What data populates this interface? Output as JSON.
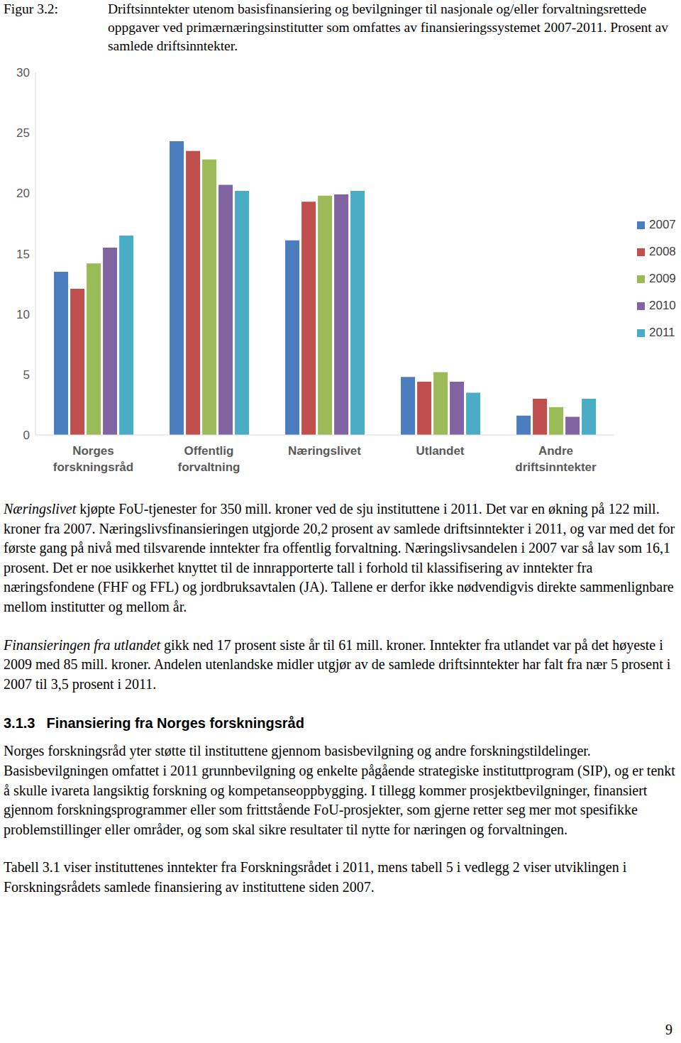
{
  "figure": {
    "label": "Figur 3.2:",
    "caption": "Driftsinntekter utenom basisfinansiering og bevilgninger til nasjonale og/eller forvaltningsrettede oppgaver ved primærnæringsinstitutter som omfattes av finansieringssystemet 2007-2011. Prosent av samlede driftsinntekter."
  },
  "chart_data": {
    "type": "bar",
    "categories": [
      "Norges forskningsråd",
      "Offentlig forvaltning",
      "Næringslivet",
      "Utlandet",
      "Andre driftsinntekter"
    ],
    "series": [
      {
        "name": "2007",
        "color": "#4a7ebf",
        "values": [
          13.5,
          24.3,
          16.1,
          4.8,
          1.6
        ]
      },
      {
        "name": "2008",
        "color": "#c0504d",
        "values": [
          12.1,
          23.5,
          19.3,
          4.4,
          3.0
        ]
      },
      {
        "name": "2009",
        "color": "#9bbb59",
        "values": [
          14.2,
          22.8,
          19.8,
          5.2,
          2.3
        ]
      },
      {
        "name": "2010",
        "color": "#8064a2",
        "values": [
          15.5,
          20.7,
          19.9,
          4.4,
          1.5
        ]
      },
      {
        "name": "2011",
        "color": "#4bacc6",
        "values": [
          16.5,
          20.2,
          20.2,
          3.5,
          3.0
        ]
      }
    ],
    "ylim": [
      0,
      30
    ],
    "yticks": [
      0,
      5,
      10,
      15,
      20,
      25,
      30
    ],
    "grid": false,
    "legend": "right"
  },
  "paragraphs_before_heading": [
    {
      "lead": "Næringslivet",
      "text": " kjøpte FoU-tjenester for 350 mill. kroner ved de sju instituttene i 2011. Det var en økning på 122 mill. kroner fra 2007. Næringslivsfinansieringen utgjorde 20,2 prosent av samlede driftsinntekter i 2011, og var med det for første gang på nivå med tilsvarende inntekter fra offentlig forvaltning. Næringslivsandelen i 2007 var så lav som 16,1 prosent. Det er noe usikkerhet knyttet til de innrapporterte tall i forhold til klassifisering av inntekter fra næringsfondene (FHF og FFL) og jordbruksavtalen (JA). Tallene er derfor ikke nødvendigvis direkte sammenlignbare mellom institutter og mellom år."
    },
    {
      "lead": "Finansieringen fra utlandet",
      "text": " gikk ned 17 prosent siste år til 61 mill. kroner. Inntekter fra utlandet var på det høyeste i 2009 med 85 mill. kroner. Andelen utenlandske midler utgjør av de samlede driftsinntekter har falt fra nær 5 prosent i 2007 til 3,5 prosent i 2011."
    }
  ],
  "heading": {
    "number": "3.1.3",
    "title": "Finansiering fra Norges forskningsråd"
  },
  "paragraphs_after_heading": [
    "Norges forskningsråd yter støtte til instituttene gjennom basisbevilgning og andre forskningstildelinger. Basisbevilgningen omfattet i 2011 grunnbevilgning og enkelte pågående strategiske instituttprogram (SIP), og er tenkt å skulle ivareta langsiktig forskning og kompetanseoppbygging. I tillegg kommer prosjektbevilgninger, finansiert gjennom forskningsprogrammer eller som frittstående FoU-prosjekter, som gjerne retter seg mer mot spesifikke problemstillinger eller områder, og som skal sikre resultater til nytte for næringen og forvaltningen.",
    "Tabell 3.1 viser instituttenes inntekter fra Forskningsrådet i 2011, mens tabell 5 i vedlegg 2 viser utviklingen i Forskningsrådets samlede finansiering av instituttene siden 2007."
  ],
  "page_number": "9"
}
